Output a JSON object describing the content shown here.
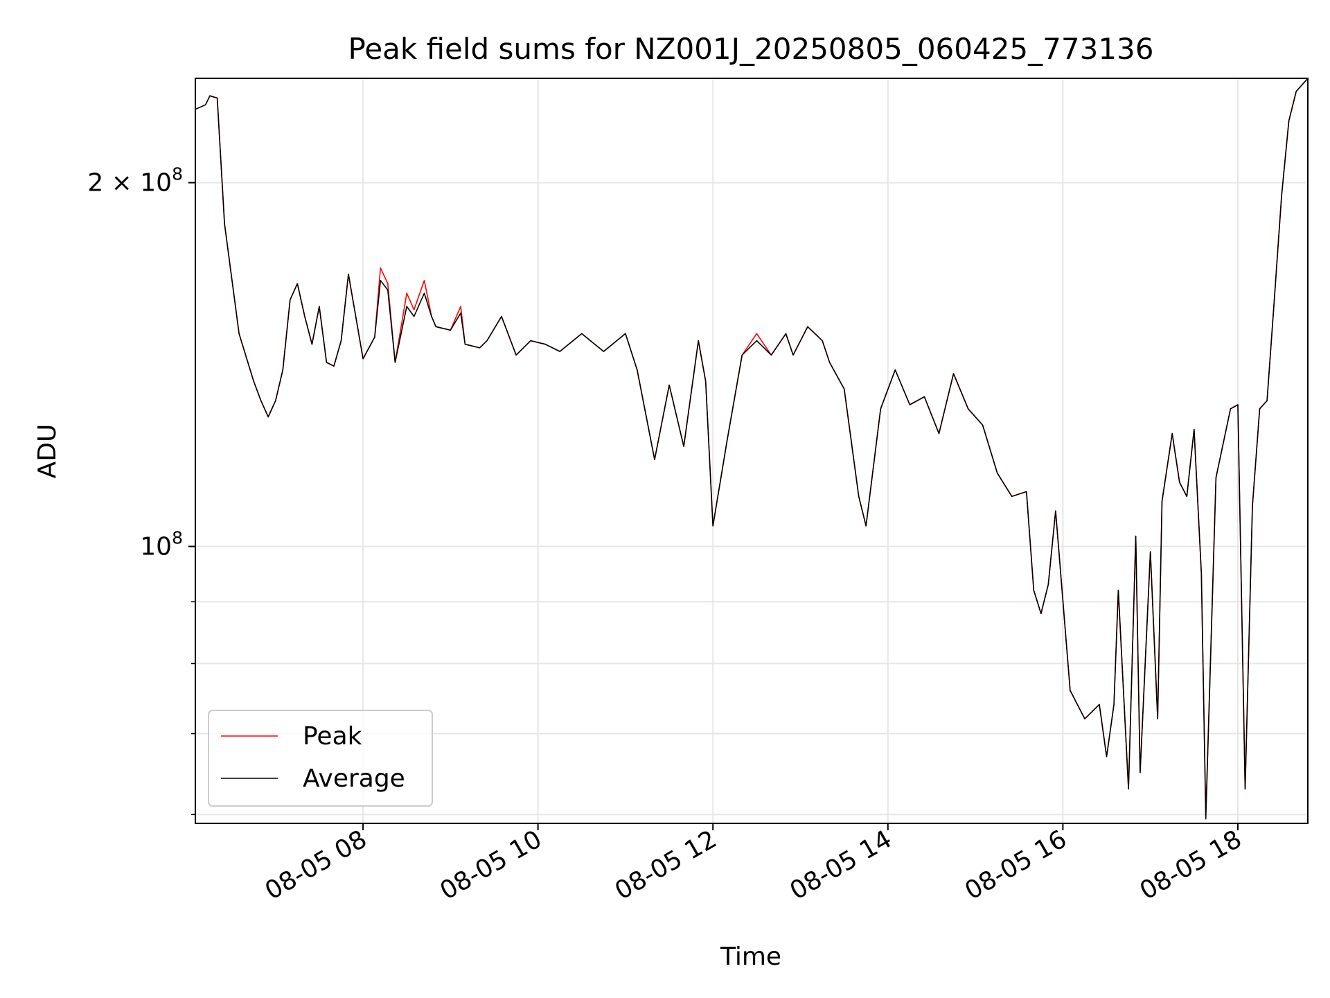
{
  "chart_data": {
    "type": "line",
    "title": "Peak field sums for NZ001J_20250805_060425_773136",
    "xlabel": "Time",
    "ylabel": "ADU",
    "y_scale": "log",
    "ylim": [
      59000000,
      244000000
    ],
    "xlim": [
      "2025-08-05 06:05",
      "2025-08-05 18:48"
    ],
    "grid": true,
    "legend_position": "lower-left",
    "x_ticks": [
      {
        "value": "2025-08-05 08:00",
        "label": "08-05 08"
      },
      {
        "value": "2025-08-05 10:00",
        "label": "08-05 10"
      },
      {
        "value": "2025-08-05 12:00",
        "label": "08-05 12"
      },
      {
        "value": "2025-08-05 14:00",
        "label": "08-05 14"
      },
      {
        "value": "2025-08-05 16:00",
        "label": "08-05 16"
      },
      {
        "value": "2025-08-05 18:00",
        "label": "08-05 18"
      }
    ],
    "y_major_ticks": [
      {
        "value": 100000000,
        "base": "10",
        "exponent": "8",
        "mantissa": ""
      },
      {
        "value": 200000000,
        "base": "10",
        "exponent": "8",
        "mantissa": "2"
      }
    ],
    "y_minor_ticks": [
      60000000,
      70000000,
      80000000,
      90000000
    ],
    "series": [
      {
        "name": "Peak",
        "color": "#ff0000",
        "x": [
          "2025-08-05 06:05",
          "2025-08-05 06:12",
          "2025-08-05 06:15",
          "2025-08-05 06:20",
          "2025-08-05 06:25",
          "2025-08-05 06:35",
          "2025-08-05 06:45",
          "2025-08-05 06:50",
          "2025-08-05 06:55",
          "2025-08-05 07:00",
          "2025-08-05 07:05",
          "2025-08-05 07:10",
          "2025-08-05 07:15",
          "2025-08-05 07:20",
          "2025-08-05 07:25",
          "2025-08-05 07:30",
          "2025-08-05 07:35",
          "2025-08-05 07:40",
          "2025-08-05 07:45",
          "2025-08-05 07:50",
          "2025-08-05 08:00",
          "2025-08-05 08:08",
          "2025-08-05 08:12",
          "2025-08-05 08:17",
          "2025-08-05 08:22",
          "2025-08-05 08:30",
          "2025-08-05 08:35",
          "2025-08-05 08:42",
          "2025-08-05 08:47",
          "2025-08-05 08:50",
          "2025-08-05 09:00",
          "2025-08-05 09:07",
          "2025-08-05 09:10",
          "2025-08-05 09:20",
          "2025-08-05 09:25",
          "2025-08-05 09:35",
          "2025-08-05 09:45",
          "2025-08-05 09:55",
          "2025-08-05 10:05",
          "2025-08-05 10:15",
          "2025-08-05 10:30",
          "2025-08-05 10:45",
          "2025-08-05 11:00",
          "2025-08-05 11:08",
          "2025-08-05 11:20",
          "2025-08-05 11:30",
          "2025-08-05 11:40",
          "2025-08-05 11:50",
          "2025-08-05 11:55",
          "2025-08-05 12:00",
          "2025-08-05 12:10",
          "2025-08-05 12:20",
          "2025-08-05 12:30",
          "2025-08-05 12:40",
          "2025-08-05 12:50",
          "2025-08-05 12:55",
          "2025-08-05 13:05",
          "2025-08-05 13:15",
          "2025-08-05 13:20",
          "2025-08-05 13:30",
          "2025-08-05 13:40",
          "2025-08-05 13:45",
          "2025-08-05 13:55",
          "2025-08-05 14:05",
          "2025-08-05 14:15",
          "2025-08-05 14:25",
          "2025-08-05 14:35",
          "2025-08-05 14:45",
          "2025-08-05 14:55",
          "2025-08-05 15:05",
          "2025-08-05 15:15",
          "2025-08-05 15:25",
          "2025-08-05 15:35",
          "2025-08-05 15:40",
          "2025-08-05 15:45",
          "2025-08-05 15:50",
          "2025-08-05 15:55",
          "2025-08-05 16:05",
          "2025-08-05 16:15",
          "2025-08-05 16:25",
          "2025-08-05 16:30",
          "2025-08-05 16:35",
          "2025-08-05 16:38",
          "2025-08-05 16:45",
          "2025-08-05 16:50",
          "2025-08-05 16:53",
          "2025-08-05 17:00",
          "2025-08-05 17:05",
          "2025-08-05 17:08",
          "2025-08-05 17:15",
          "2025-08-05 17:20",
          "2025-08-05 17:25",
          "2025-08-05 17:30",
          "2025-08-05 17:35",
          "2025-08-05 17:38",
          "2025-08-05 17:45",
          "2025-08-05 17:55",
          "2025-08-05 18:00",
          "2025-08-05 18:05",
          "2025-08-05 18:10",
          "2025-08-05 18:15",
          "2025-08-05 18:20",
          "2025-08-05 18:25",
          "2025-08-05 18:30",
          "2025-08-05 18:35",
          "2025-08-05 18:40",
          "2025-08-05 18:48"
        ],
        "values": [
          230000000,
          232000000,
          236000000,
          235000000,
          185000000,
          150000000,
          137000000,
          132000000,
          128000000,
          132000000,
          140000000,
          160000000,
          165000000,
          155000000,
          147000000,
          158000000,
          142000000,
          141000000,
          148000000,
          168000000,
          143000000,
          149000000,
          170000000,
          165000000,
          142000000,
          162000000,
          157000000,
          166000000,
          155000000,
          152000000,
          151000000,
          158000000,
          147000000,
          146000000,
          148000000,
          155000000,
          144000000,
          148000000,
          147000000,
          145000000,
          150000000,
          145000000,
          150000000,
          140000000,
          118000000,
          136000000,
          121000000,
          148000000,
          137000000,
          104000000,
          123000000,
          144000000,
          150000000,
          144000000,
          150000000,
          144000000,
          152000000,
          148000000,
          142000000,
          135000000,
          110000000,
          104000000,
          130000000,
          140000000,
          131000000,
          133000000,
          124000000,
          139000000,
          130000000,
          126000000,
          115000000,
          110000000,
          111000000,
          92000000,
          88000000,
          93000000,
          107000000,
          76000000,
          72000000,
          74000000,
          67000000,
          74000000,
          92000000,
          63000000,
          102000000,
          65000000,
          99000000,
          72000000,
          109000000,
          124000000,
          113000000,
          110000000,
          125000000,
          95000000,
          60000000,
          114000000,
          130000000,
          131000000,
          63000000,
          108000000,
          130000000,
          132000000,
          160000000,
          195000000,
          225000000,
          238000000,
          244000000
        ]
      },
      {
        "name": "Average",
        "color": "#000000",
        "x": [
          "2025-08-05 06:05",
          "2025-08-05 06:12",
          "2025-08-05 06:15",
          "2025-08-05 06:20",
          "2025-08-05 06:25",
          "2025-08-05 06:35",
          "2025-08-05 06:45",
          "2025-08-05 06:50",
          "2025-08-05 06:55",
          "2025-08-05 07:00",
          "2025-08-05 07:05",
          "2025-08-05 07:10",
          "2025-08-05 07:15",
          "2025-08-05 07:20",
          "2025-08-05 07:25",
          "2025-08-05 07:30",
          "2025-08-05 07:35",
          "2025-08-05 07:40",
          "2025-08-05 07:45",
          "2025-08-05 07:50",
          "2025-08-05 08:00",
          "2025-08-05 08:08",
          "2025-08-05 08:12",
          "2025-08-05 08:17",
          "2025-08-05 08:22",
          "2025-08-05 08:30",
          "2025-08-05 08:35",
          "2025-08-05 08:42",
          "2025-08-05 08:47",
          "2025-08-05 08:50",
          "2025-08-05 09:00",
          "2025-08-05 09:07",
          "2025-08-05 09:10",
          "2025-08-05 09:20",
          "2025-08-05 09:25",
          "2025-08-05 09:35",
          "2025-08-05 09:45",
          "2025-08-05 09:55",
          "2025-08-05 10:05",
          "2025-08-05 10:15",
          "2025-08-05 10:30",
          "2025-08-05 10:45",
          "2025-08-05 11:00",
          "2025-08-05 11:08",
          "2025-08-05 11:20",
          "2025-08-05 11:30",
          "2025-08-05 11:40",
          "2025-08-05 11:50",
          "2025-08-05 11:55",
          "2025-08-05 12:00",
          "2025-08-05 12:10",
          "2025-08-05 12:20",
          "2025-08-05 12:30",
          "2025-08-05 12:40",
          "2025-08-05 12:50",
          "2025-08-05 12:55",
          "2025-08-05 13:05",
          "2025-08-05 13:15",
          "2025-08-05 13:20",
          "2025-08-05 13:30",
          "2025-08-05 13:40",
          "2025-08-05 13:45",
          "2025-08-05 13:55",
          "2025-08-05 14:05",
          "2025-08-05 14:15",
          "2025-08-05 14:25",
          "2025-08-05 14:35",
          "2025-08-05 14:45",
          "2025-08-05 14:55",
          "2025-08-05 15:05",
          "2025-08-05 15:15",
          "2025-08-05 15:25",
          "2025-08-05 15:35",
          "2025-08-05 15:40",
          "2025-08-05 15:45",
          "2025-08-05 15:50",
          "2025-08-05 15:55",
          "2025-08-05 16:05",
          "2025-08-05 16:15",
          "2025-08-05 16:25",
          "2025-08-05 16:30",
          "2025-08-05 16:35",
          "2025-08-05 16:38",
          "2025-08-05 16:45",
          "2025-08-05 16:50",
          "2025-08-05 16:53",
          "2025-08-05 17:00",
          "2025-08-05 17:05",
          "2025-08-05 17:08",
          "2025-08-05 17:15",
          "2025-08-05 17:20",
          "2025-08-05 17:25",
          "2025-08-05 17:30",
          "2025-08-05 17:35",
          "2025-08-05 17:38",
          "2025-08-05 17:45",
          "2025-08-05 17:55",
          "2025-08-05 18:00",
          "2025-08-05 18:05",
          "2025-08-05 18:10",
          "2025-08-05 18:15",
          "2025-08-05 18:20",
          "2025-08-05 18:25",
          "2025-08-05 18:30",
          "2025-08-05 18:35",
          "2025-08-05 18:40",
          "2025-08-05 18:48"
        ],
        "values": [
          230000000,
          232000000,
          236000000,
          235000000,
          185000000,
          150000000,
          137000000,
          132000000,
          128000000,
          132000000,
          140000000,
          160000000,
          165000000,
          155000000,
          147000000,
          158000000,
          142000000,
          141000000,
          148000000,
          168000000,
          143000000,
          149000000,
          166000000,
          163000000,
          142000000,
          158000000,
          155000000,
          162000000,
          155000000,
          152000000,
          151000000,
          156000000,
          147000000,
          146000000,
          148000000,
          155000000,
          144000000,
          148000000,
          147000000,
          145000000,
          150000000,
          145000000,
          150000000,
          140000000,
          118000000,
          136000000,
          121000000,
          148000000,
          137000000,
          104000000,
          123000000,
          144000000,
          148000000,
          144000000,
          150000000,
          144000000,
          152000000,
          148000000,
          142000000,
          135000000,
          110000000,
          104000000,
          130000000,
          140000000,
          131000000,
          133000000,
          124000000,
          139000000,
          130000000,
          126000000,
          115000000,
          110000000,
          111000000,
          92000000,
          88000000,
          93000000,
          107000000,
          76000000,
          72000000,
          74000000,
          67000000,
          74000000,
          92000000,
          63000000,
          102000000,
          65000000,
          99000000,
          72000000,
          109000000,
          124000000,
          113000000,
          110000000,
          125000000,
          95000000,
          59500000,
          114000000,
          130000000,
          131000000,
          63000000,
          108000000,
          130000000,
          132000000,
          160000000,
          195000000,
          225000000,
          238000000,
          244000000
        ]
      }
    ]
  }
}
